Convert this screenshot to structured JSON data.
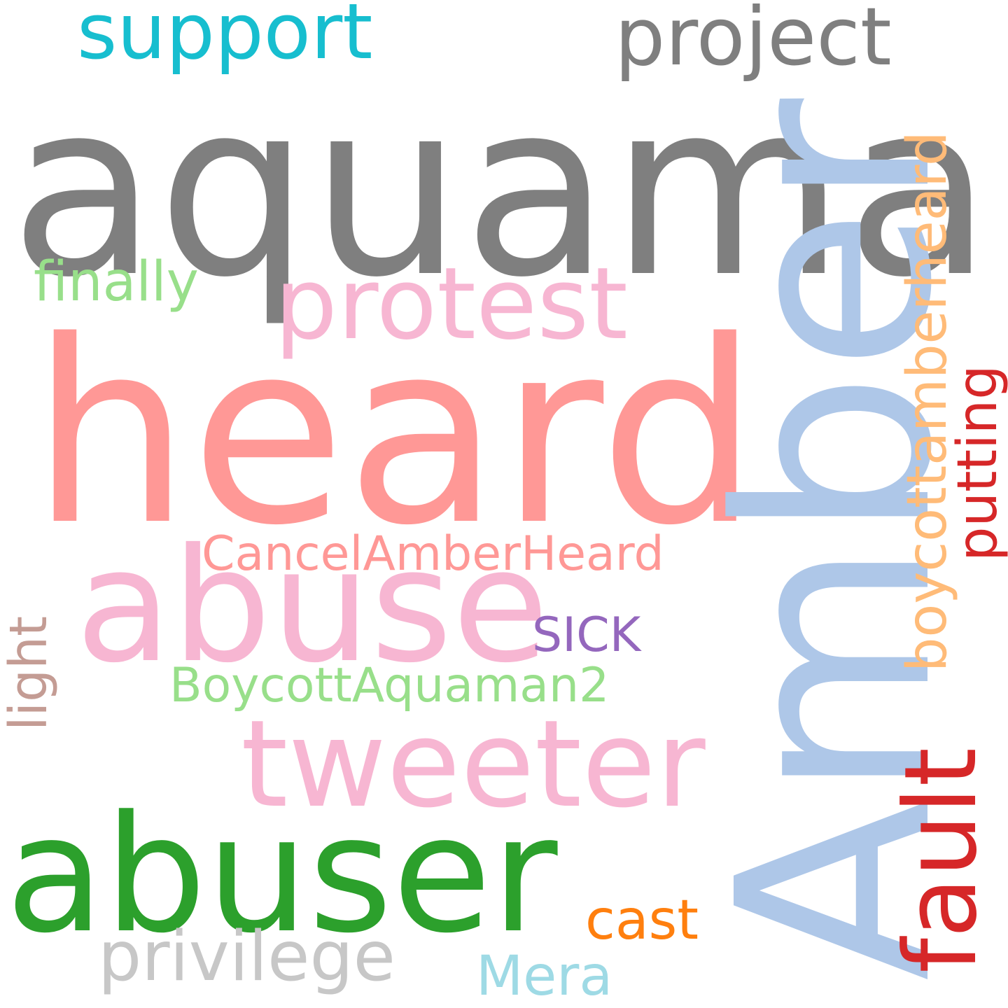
{
  "words": {
    "aquaman": {
      "text": "aquaman",
      "color": "#7f7f7f"
    },
    "support": {
      "text": "support",
      "color": "#17becf"
    },
    "project": {
      "text": "project",
      "color": "#7f7f7f"
    },
    "finally": {
      "text": "finally",
      "color": "#98df8a"
    },
    "protest": {
      "text": "protest",
      "color": "#f7b6d2"
    },
    "heard": {
      "text": "heard",
      "color": "#ff9896"
    },
    "amber": {
      "text": "Amber",
      "color": "#aec7e8"
    },
    "boycotth": {
      "text": "boycottamberheard",
      "color": "#ffbb78"
    },
    "putting": {
      "text": "putting",
      "color": "#d62728"
    },
    "cancel": {
      "text": "CancelAmberHeard",
      "color": "#ff9896"
    },
    "abuse": {
      "text": "abuse",
      "color": "#f7b6d2"
    },
    "sick": {
      "text": "SICK",
      "color": "#9467bd"
    },
    "light": {
      "text": "light",
      "color": "#c49c94"
    },
    "boycott2": {
      "text": "BoycottAquaman2",
      "color": "#98df8a"
    },
    "tweeter": {
      "text": "tweeter",
      "color": "#f7b6d2"
    },
    "fault": {
      "text": "fault",
      "color": "#d62728"
    },
    "abuser": {
      "text": "abuser",
      "color": "#2ca02c"
    },
    "cast": {
      "text": "cast",
      "color": "#ff7f0e"
    },
    "privilege": {
      "text": "privilege",
      "color": "#c7c7c7"
    },
    "mera": {
      "text": "Mera",
      "color": "#9edae5"
    }
  }
}
